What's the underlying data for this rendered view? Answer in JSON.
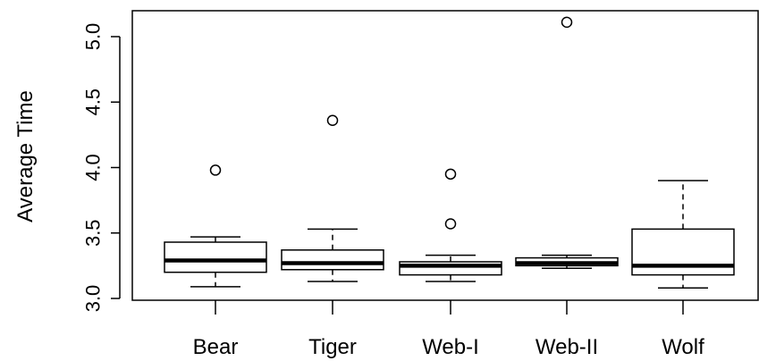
{
  "chart_data": {
    "type": "boxplot",
    "title": "",
    "xlabel": "",
    "ylabel": "Average Time",
    "ylim": [
      3.0,
      5.0
    ],
    "yticks": [
      "3.0",
      "3.5",
      "4.0",
      "4.5",
      "5.0"
    ],
    "grid": false,
    "categories": [
      "Bear",
      "Tiger",
      "Web-I",
      "Web-II",
      "Wolf"
    ],
    "boxes": [
      {
        "category": "Bear",
        "whisker_low": 3.09,
        "q1": 3.2,
        "median": 3.29,
        "q3": 3.43,
        "whisker_high": 3.47,
        "outliers": [
          3.98
        ]
      },
      {
        "category": "Tiger",
        "whisker_low": 3.13,
        "q1": 3.22,
        "median": 3.27,
        "q3": 3.37,
        "whisker_high": 3.53,
        "outliers": [
          4.36
        ]
      },
      {
        "category": "Web-I",
        "whisker_low": 3.13,
        "q1": 3.18,
        "median": 3.25,
        "q3": 3.28,
        "whisker_high": 3.33,
        "outliers": [
          3.57,
          3.95
        ]
      },
      {
        "category": "Web-II",
        "whisker_low": 3.23,
        "q1": 3.25,
        "median": 3.27,
        "q3": 3.31,
        "whisker_high": 3.33,
        "outliers": [
          5.11
        ]
      },
      {
        "category": "Wolf",
        "whisker_low": 3.08,
        "q1": 3.18,
        "median": 3.25,
        "q3": 3.53,
        "whisker_high": 3.9,
        "outliers": []
      }
    ]
  }
}
